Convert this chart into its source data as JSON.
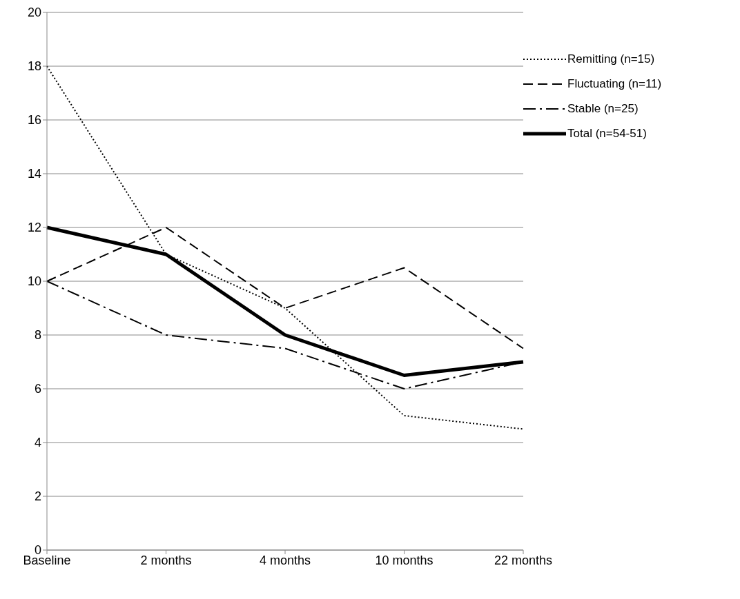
{
  "chart_data": {
    "type": "line",
    "categories": [
      "Baseline",
      "2 months",
      "4 months",
      "10 months",
      "22 months"
    ],
    "series": [
      {
        "name": "Remitting (n=15)",
        "color": "#000000",
        "line_style": "dotted",
        "values": [
          18,
          11,
          9,
          5,
          4.5
        ]
      },
      {
        "name": "Fluctuating (n=11)",
        "color": "#000000",
        "line_style": "dashed",
        "values": [
          10,
          12,
          9,
          10.5,
          7.5
        ]
      },
      {
        "name": "Stable (n=25)",
        "color": "#000000",
        "line_style": "dashdot",
        "values": [
          10,
          8,
          7.5,
          6,
          7
        ]
      },
      {
        "name": "Total (n=54-51)",
        "color": "#000000",
        "line_style": "solid",
        "values": [
          12,
          11,
          8,
          6.5,
          7
        ]
      }
    ],
    "ylim": [
      0,
      20
    ],
    "yticks": [
      0,
      2,
      4,
      6,
      8,
      10,
      12,
      14,
      16,
      18,
      20
    ],
    "grid": "y",
    "legend": "top right",
    "marker": "none"
  }
}
